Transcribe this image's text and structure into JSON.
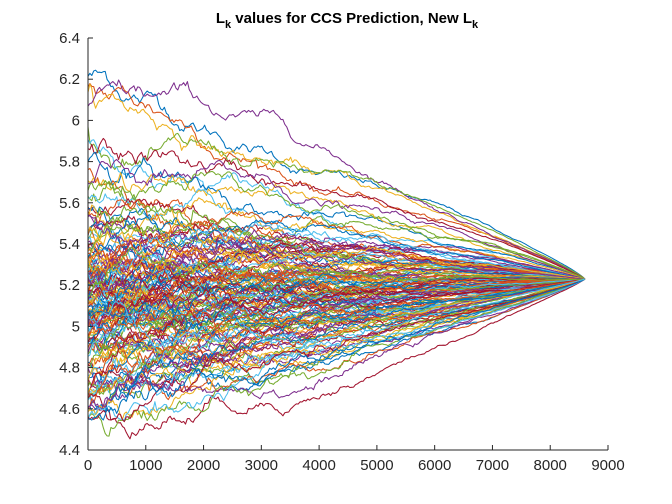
{
  "chart_data": {
    "type": "line",
    "title": "L",
    "title_sub": "k",
    "title_mid": " values for CCS Prediction, New L",
    "title_sub2": "k",
    "xlabel": "",
    "ylabel": "",
    "xlim": [
      0,
      9000
    ],
    "ylim": [
      4.4,
      6.4
    ],
    "xticks": [
      0,
      1000,
      2000,
      3000,
      4000,
      5000,
      6000,
      7000,
      8000,
      9000
    ],
    "xtick_labels": [
      "0",
      "1000",
      "2000",
      "3000",
      "4000",
      "5000",
      "6000",
      "7000",
      "8000",
      "9000"
    ],
    "yticks": [
      4.4,
      4.6,
      4.8,
      5,
      5.2,
      5.4,
      5.6,
      5.8,
      6,
      6.2,
      6.4
    ],
    "ytick_labels": [
      "4.4",
      "4.6",
      "4.8",
      "5",
      "5.2",
      "5.4",
      "5.6",
      "5.8",
      "6",
      "6.2",
      "6.4"
    ],
    "grid": false,
    "x_end": 8600,
    "converge_value": 5.23,
    "series_count": 160,
    "palette": [
      "#0072BD",
      "#D95319",
      "#EDB120",
      "#7E2F8E",
      "#77AC30",
      "#4DBEEE",
      "#A2142F"
    ],
    "series_start_values": [
      6.22,
      6.18,
      6.12,
      6.05,
      5.98,
      5.92,
      5.85,
      5.8,
      5.76,
      5.72,
      5.69,
      5.66,
      5.63,
      5.6,
      5.58,
      5.56,
      5.54,
      5.52,
      5.5,
      5.49,
      5.47,
      5.46,
      5.45,
      5.44,
      5.43,
      5.42,
      5.41,
      5.4,
      5.39,
      5.38,
      5.37,
      5.36,
      5.35,
      5.34,
      5.33,
      5.32,
      5.31,
      5.3,
      5.3,
      5.29,
      5.28,
      5.28,
      5.27,
      5.27,
      5.26,
      5.26,
      5.25,
      5.25,
      5.24,
      5.24,
      5.23,
      5.23,
      5.22,
      5.22,
      5.21,
      5.21,
      5.2,
      5.2,
      5.19,
      5.19,
      5.18,
      5.18,
      5.17,
      5.17,
      5.16,
      5.16,
      5.15,
      5.15,
      5.14,
      5.14,
      5.13,
      5.13,
      5.12,
      5.12,
      5.11,
      5.11,
      5.1,
      5.1,
      5.09,
      5.09,
      5.08,
      5.08,
      5.07,
      5.07,
      5.06,
      5.06,
      5.05,
      5.05,
      5.04,
      5.04,
      5.03,
      5.03,
      5.02,
      5.02,
      5.01,
      5.01,
      5.0,
      5.0,
      4.99,
      4.99,
      4.98,
      4.98,
      4.97,
      4.97,
      4.96,
      4.96,
      4.95,
      4.94,
      4.93,
      4.92,
      4.91,
      4.9,
      4.89,
      4.88,
      4.87,
      4.86,
      4.85,
      4.84,
      4.83,
      4.82,
      4.81,
      4.8,
      4.79,
      4.78,
      4.77,
      4.76,
      4.75,
      4.74,
      4.73,
      4.72,
      4.71,
      4.7,
      4.69,
      4.68,
      4.67,
      4.66,
      4.65,
      4.64,
      4.63,
      4.62,
      4.61,
      4.6,
      4.59,
      4.58,
      4.57,
      4.56,
      4.55,
      4.54,
      5.35,
      5.45,
      5.55,
      5.65,
      5.28,
      5.18,
      5.08,
      4.98,
      5.32,
      5.22,
      5.12,
      5.02
    ]
  }
}
